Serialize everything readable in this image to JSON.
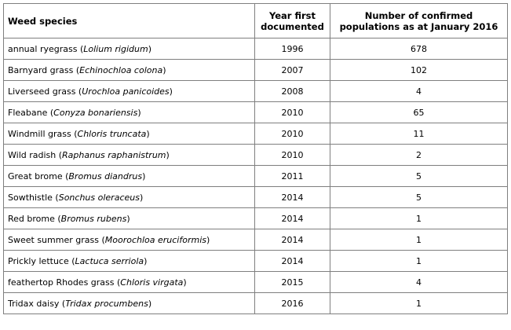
{
  "table": {
    "headers": {
      "species": "Weed species",
      "year": "Year first documented",
      "populations": "Number of confirmed populations as at January 2016"
    },
    "rows": [
      {
        "common": "annual ryegrass (",
        "scientific": "Lolium rigidum",
        "close": ")",
        "year": "1996",
        "populations": "678"
      },
      {
        "common": "Barnyard grass (",
        "scientific": "Echinochloa colona",
        "close": ")",
        "year": "2007",
        "populations": "102"
      },
      {
        "common": "Liverseed grass (",
        "scientific": "Urochloa panicoides",
        "close": ")",
        "year": "2008",
        "populations": "4"
      },
      {
        "common": "Fleabane (",
        "scientific": "Conyza bonariensis",
        "close": ")",
        "year": "2010",
        "populations": "65"
      },
      {
        "common": "Windmill grass (",
        "scientific": "Chloris truncata",
        "close": ")",
        "year": "2010",
        "populations": "11"
      },
      {
        "common": "Wild radish (",
        "scientific": "Raphanus raphanistrum",
        "close": ")",
        "year": "2010",
        "populations": "2"
      },
      {
        "common": "Great brome (",
        "scientific": "Bromus diandrus",
        "close": ")",
        "year": "2011",
        "populations": "5"
      },
      {
        "common": "Sowthistle (",
        "scientific": "Sonchus oleraceus",
        "close": ")",
        "year": "2014",
        "populations": "5"
      },
      {
        "common": "Red brome (",
        "scientific": "Bromus rubens",
        "close": ")",
        "year": "2014",
        "populations": "1"
      },
      {
        "common": "Sweet summer grass (",
        "scientific": "Moorochloa eruciformis",
        "close": ")",
        "year": "2014",
        "populations": "1"
      },
      {
        "common": "Prickly lettuce (",
        "scientific": "Lactuca serriola",
        "close": ")",
        "year": "2014",
        "populations": "1"
      },
      {
        "common": "feathertop Rhodes grass (",
        "scientific": "Chloris virgata",
        "close": ")",
        "year": "2015",
        "populations": "4"
      },
      {
        "common": "Tridax daisy (",
        "scientific": "Tridax procumbens",
        "close": ")",
        "year": "2016",
        "populations": "1"
      }
    ]
  }
}
